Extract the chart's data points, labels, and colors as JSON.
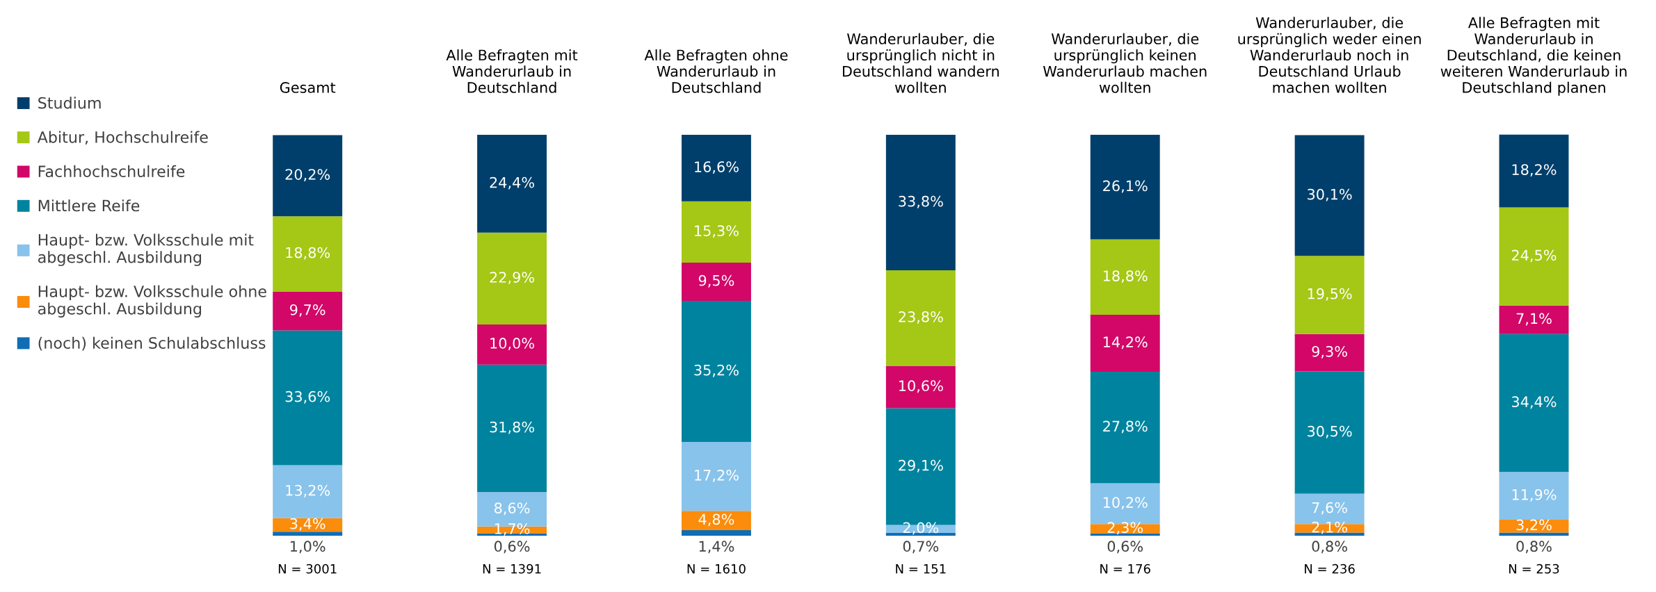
{
  "chart_data": {
    "type": "bar",
    "stacked": true,
    "legend": "left",
    "categories": [
      "Gesamt",
      "Alle Befragten mit Wanderurlaub in Deutschland",
      "Alle Befragten ohne Wanderurlaub in Deutschland",
      "Wanderurlauber, die ursprünglich nicht in Deutschland wandern wollten",
      "Wanderurlauber, die ursprünglich keinen Wanderurlaub machen wollten",
      "Wanderurlauber, die ursprünglich weder einen Wanderurlaub noch in Deutschland Urlaub machen wollten",
      "Alle Befragten mit Wanderurlaub in Deutschland, die keinen weiteren Wanderurlaub in Deutschland planen"
    ],
    "series": [
      {
        "name": "(noch) keinen Schulabschluss",
        "color": "#0f6db5",
        "values": [
          1.0,
          0.6,
          1.4,
          0.7,
          0.6,
          0.8,
          0.8
        ],
        "value_labels": [
          "1,0%",
          "0,6%",
          "1,4%",
          "0,7%",
          "0,6%",
          "0,8%",
          "0,8%"
        ]
      },
      {
        "name": "Haupt- bzw. Volksschule ohne abgeschl. Ausbildung",
        "color": "#fb8c0c",
        "values": [
          3.4,
          1.7,
          4.8,
          null,
          2.3,
          2.1,
          3.2
        ],
        "value_labels": [
          "3,4%",
          "1,7%",
          "4,8%",
          null,
          "2,3%",
          "2,1%",
          "3,2%"
        ]
      },
      {
        "name": "Haupt- bzw. Volksschule mit abgeschl. Ausbildung",
        "color": "#88c3eb",
        "values": [
          13.2,
          8.6,
          17.2,
          2.0,
          10.2,
          7.6,
          11.9
        ],
        "value_labels": [
          "13,2%",
          "8,6%",
          "17,2%",
          "2,0%",
          "10,2%",
          "7,6%",
          "11,9%"
        ]
      },
      {
        "name": "Mittlere Reife",
        "color": "#00839e",
        "values": [
          33.6,
          31.8,
          35.2,
          29.1,
          27.8,
          30.5,
          34.4
        ],
        "value_labels": [
          "33,6%",
          "31,8%",
          "35,2%",
          "29,1%",
          "27,8%",
          "30,5%",
          "34,4%"
        ]
      },
      {
        "name": "Fachhochschulreife",
        "color": "#d20768",
        "values": [
          9.7,
          10.0,
          9.5,
          10.6,
          14.2,
          9.3,
          7.1
        ],
        "value_labels": [
          "9,7%",
          "10,0%",
          "9,5%",
          "10,6%",
          "14,2%",
          "9,3%",
          "7,1%"
        ]
      },
      {
        "name": "Abitur, Hochschulreife",
        "color": "#a5c716",
        "values": [
          18.8,
          22.9,
          15.3,
          23.8,
          18.8,
          19.5,
          24.5
        ],
        "value_labels": [
          "18,8%",
          "22,9%",
          "15,3%",
          "23,8%",
          "18,8%",
          "19,5%",
          "24,5%"
        ]
      },
      {
        "name": "Studium",
        "color": "#003f6b",
        "values": [
          20.2,
          24.4,
          16.6,
          33.8,
          26.1,
          30.1,
          18.2
        ],
        "value_labels": [
          "20,2%",
          "24,4%",
          "16,6%",
          "33,8%",
          "26,1%",
          "30,1%",
          "18,2%"
        ]
      }
    ],
    "annotations": [
      "N = 3001",
      "N = 1391",
      "N = 1610",
      "N = 151",
      "N = 176",
      "N = 236",
      "N = 253"
    ]
  }
}
